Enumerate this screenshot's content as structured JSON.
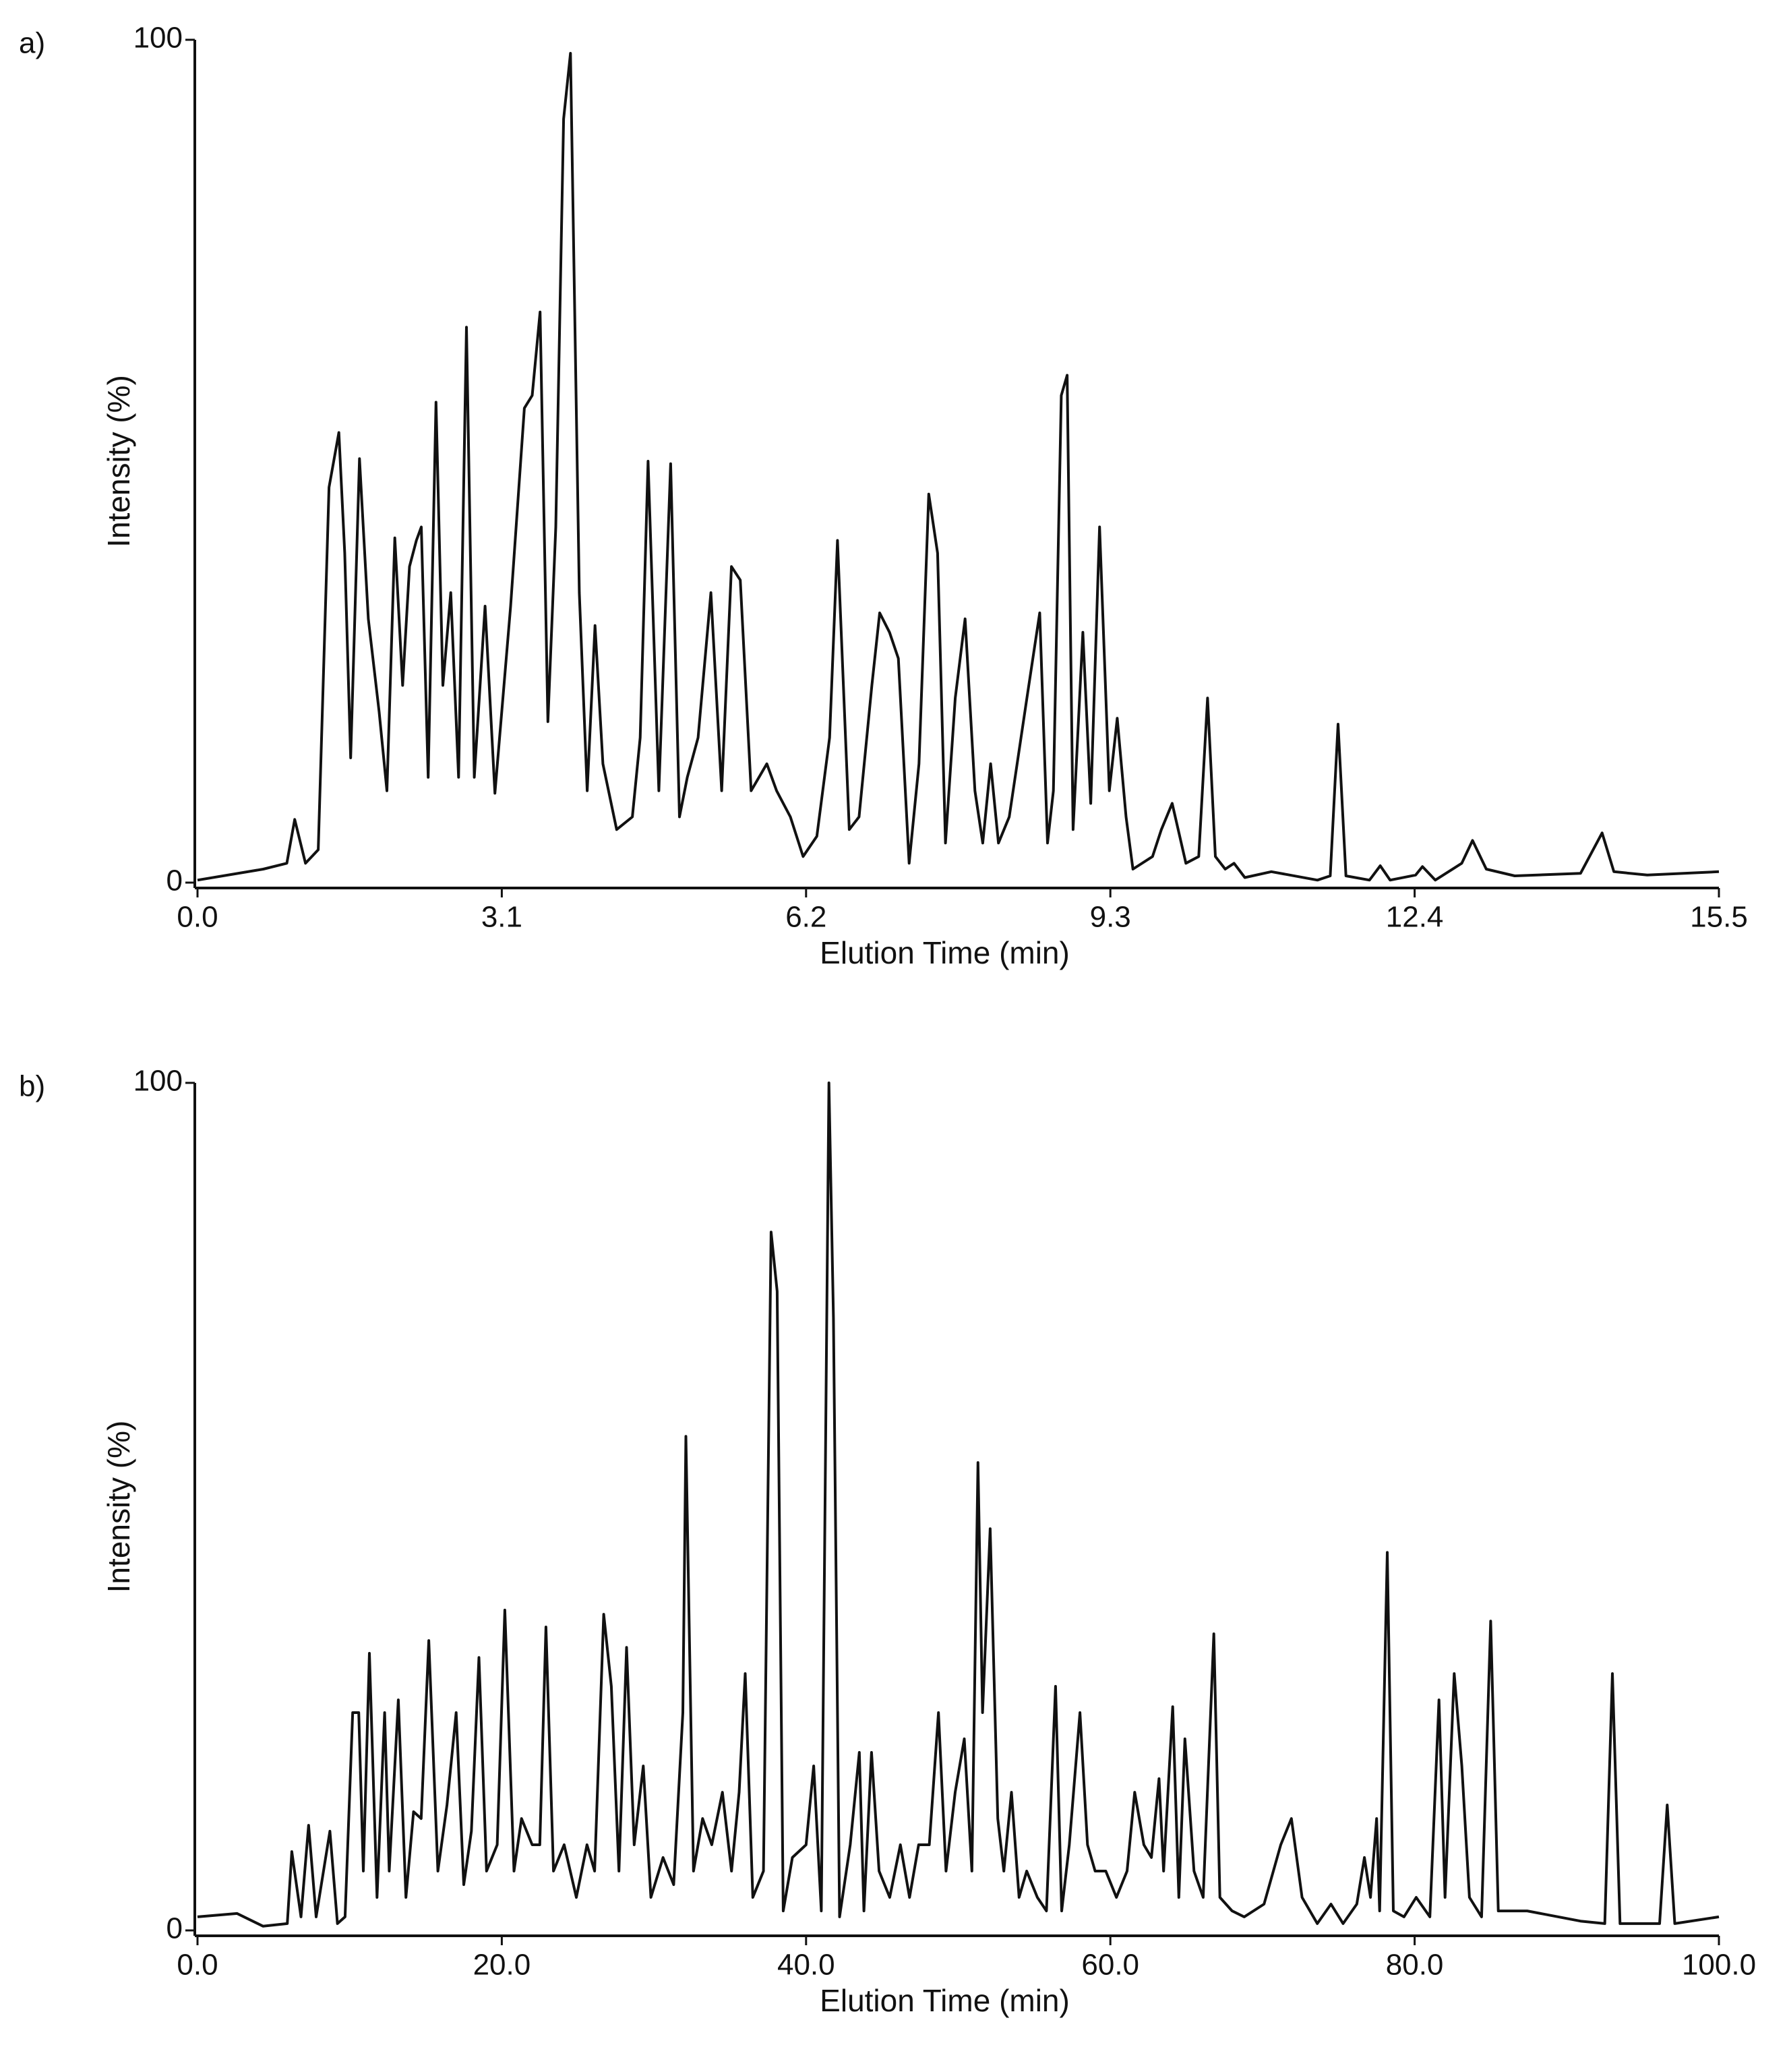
{
  "chart_data": [
    {
      "type": "line",
      "panel_label": "a)",
      "x_label": "Elution Time (min)",
      "y_label": "Intensity (%)",
      "color": "#111111",
      "grid": false,
      "xlim": [
        0,
        15.5
      ],
      "ylim": [
        0,
        100
      ],
      "xticks": [
        {
          "value": 0,
          "label": "0.0"
        },
        3.1,
        6.2,
        9.3,
        12.4,
        15.5
      ],
      "yticks": [
        0,
        100
      ],
      "x": [
        0,
        0.67,
        0.91,
        0.99,
        1.1,
        1.23,
        1.34,
        1.44,
        1.5,
        1.56,
        1.65,
        1.74,
        1.85,
        1.93,
        2.01,
        2.09,
        2.16,
        2.23,
        2.28,
        2.35,
        2.43,
        2.5,
        2.58,
        2.66,
        2.74,
        2.82,
        2.93,
        3.03,
        3.19,
        3.33,
        3.41,
        3.49,
        3.57,
        3.65,
        3.73,
        3.8,
        3.89,
        3.97,
        4.05,
        4.13,
        4.27,
        4.43,
        4.51,
        4.59,
        4.7,
        4.82,
        4.91,
        4.99,
        5.1,
        5.23,
        5.34,
        5.44,
        5.53,
        5.64,
        5.8,
        5.9,
        6.04,
        6.17,
        6.31,
        6.44,
        6.52,
        6.64,
        6.74,
        6.87,
        6.95,
        7.05,
        7.14,
        7.25,
        7.35,
        7.45,
        7.54,
        7.62,
        7.72,
        7.82,
        7.92,
        8.0,
        8.08,
        8.16,
        8.27,
        8.45,
        8.58,
        8.66,
        8.72,
        8.8,
        8.86,
        8.92,
        9.02,
        9.1,
        9.19,
        9.29,
        9.37,
        9.46,
        9.53,
        9.73,
        9.82,
        9.93,
        10.07,
        10.2,
        10.29,
        10.37,
        10.47,
        10.56,
        10.67,
        10.94,
        11.41,
        11.54,
        11.62,
        11.7,
        11.94,
        12.05,
        12.15,
        12.41,
        12.48,
        12.61,
        12.88,
        12.99,
        13.13,
        13.42,
        14.09,
        14.31,
        14.43,
        14.77,
        15.5
      ],
      "values": [
        0.3,
        1.6,
        2.3,
        7.5,
        2.3,
        3.9,
        46.9,
        53.4,
        39.1,
        14.8,
        50.3,
        31.3,
        20.3,
        10.9,
        40.9,
        23.4,
        37.5,
        40.6,
        42.2,
        12.5,
        57.0,
        23.4,
        34.4,
        12.5,
        65.9,
        12.5,
        32.8,
        10.6,
        32.8,
        56.3,
        57.8,
        67.7,
        19.1,
        42.2,
        90.6,
        98.4,
        34.4,
        10.9,
        30.5,
        14.1,
        6.3,
        7.8,
        17.2,
        50.0,
        10.9,
        49.7,
        7.8,
        12.5,
        17.2,
        34.4,
        10.9,
        37.5,
        35.9,
        10.9,
        14.1,
        10.9,
        7.8,
        3.1,
        5.5,
        17.2,
        40.6,
        6.3,
        7.8,
        23.4,
        32.0,
        29.7,
        26.6,
        2.3,
        14.1,
        46.1,
        39.1,
        4.7,
        21.9,
        31.3,
        10.9,
        4.7,
        14.1,
        4.7,
        7.8,
        21.9,
        32.0,
        4.7,
        10.9,
        57.8,
        60.2,
        6.3,
        29.7,
        9.4,
        42.2,
        10.9,
        19.5,
        7.8,
        1.6,
        3.1,
        6.3,
        9.4,
        2.3,
        3.1,
        21.9,
        3.1,
        1.6,
        2.3,
        0.6,
        1.3,
        0.3,
        0.8,
        18.8,
        0.8,
        0.3,
        2.0,
        0.3,
        0.9,
        1.9,
        0.3,
        2.3,
        5.0,
        1.6,
        0.8,
        1.1,
        5.9,
        1.3,
        0.9,
        1.3
      ]
    },
    {
      "type": "line",
      "panel_label": "b)",
      "x_label": "Elution Time (min)",
      "y_label": "Intensity (%)",
      "color": "#111111",
      "grid": false,
      "xlim": [
        0,
        100
      ],
      "ylim": [
        0,
        100
      ],
      "xticks": [
        {
          "value": 0,
          "label": "0.0"
        },
        {
          "value": 20,
          "label": "20.0"
        },
        {
          "value": 40,
          "label": "40.0"
        },
        {
          "value": 60,
          "label": "60.0"
        },
        {
          "value": 80,
          "label": "80.0"
        },
        {
          "value": 100,
          "label": "100.0"
        }
      ],
      "yticks": [
        0,
        100
      ],
      "x": [
        0,
        2.6,
        4.3,
        5.9,
        6.2,
        6.8,
        7.3,
        7.8,
        8.7,
        9.2,
        9.7,
        10.2,
        10.6,
        10.9,
        11.3,
        11.8,
        12.3,
        12.6,
        13.2,
        13.7,
        14.2,
        14.7,
        15.2,
        15.8,
        16.4,
        17.0,
        17.5,
        18.0,
        18.5,
        19.0,
        19.7,
        20.2,
        20.8,
        21.3,
        22.0,
        22.5,
        22.9,
        23.4,
        24.1,
        24.9,
        25.6,
        26.1,
        26.7,
        27.2,
        27.7,
        28.2,
        28.7,
        29.3,
        29.8,
        30.6,
        31.3,
        31.9,
        32.1,
        32.6,
        33.2,
        33.8,
        34.5,
        35.1,
        35.6,
        36.0,
        36.5,
        37.2,
        37.7,
        38.1,
        38.5,
        39.1,
        40.0,
        40.5,
        41.0,
        41.5,
        41.8,
        42.2,
        42.9,
        43.5,
        43.8,
        44.3,
        44.8,
        45.5,
        46.2,
        46.8,
        47.4,
        48.1,
        48.7,
        49.2,
        49.8,
        50.4,
        50.9,
        51.3,
        51.6,
        52.1,
        52.6,
        53.0,
        53.5,
        54.0,
        54.5,
        55.2,
        55.8,
        56.4,
        56.8,
        57.3,
        58.0,
        58.5,
        59.0,
        59.7,
        60.4,
        61.1,
        61.6,
        62.2,
        62.7,
        63.2,
        63.5,
        64.1,
        64.5,
        64.9,
        65.5,
        66.1,
        66.8,
        67.2,
        68.0,
        68.8,
        70.1,
        71.2,
        71.9,
        72.6,
        73.6,
        74.5,
        75.3,
        76.2,
        76.7,
        77.1,
        77.5,
        77.7,
        78.2,
        78.6,
        79.3,
        80.1,
        81.0,
        81.6,
        82.0,
        82.6,
        83.1,
        83.6,
        84.4,
        85.0,
        85.5,
        87.4,
        90.9,
        92.5,
        93.0,
        93.5,
        96.1,
        96.6,
        97.1,
        100
      ],
      "values": [
        1.6,
        2.0,
        0.5,
        0.8,
        9.3,
        1.6,
        12.4,
        1.6,
        11.7,
        0.8,
        1.6,
        25.7,
        25.7,
        7.0,
        32.7,
        3.9,
        25.7,
        7.0,
        27.2,
        3.9,
        14.0,
        13.2,
        34.2,
        7.0,
        14.8,
        25.7,
        5.4,
        11.7,
        32.2,
        7.0,
        10.1,
        37.8,
        7.0,
        13.2,
        10.1,
        10.1,
        35.8,
        7.0,
        10.1,
        3.9,
        10.1,
        7.0,
        37.3,
        28.8,
        7.0,
        33.4,
        10.1,
        19.4,
        3.9,
        8.6,
        5.4,
        25.7,
        58.3,
        7.0,
        13.2,
        10.1,
        16.3,
        7.0,
        16.3,
        30.3,
        3.9,
        7.0,
        82.4,
        75.4,
        2.3,
        8.6,
        10.1,
        19.4,
        2.3,
        100,
        72.3,
        1.6,
        10.1,
        21.0,
        2.3,
        21.0,
        7.0,
        3.9,
        10.1,
        3.9,
        10.1,
        10.1,
        25.7,
        7.0,
        16.3,
        22.6,
        7.0,
        55.2,
        25.7,
        47.4,
        13.2,
        7.0,
        16.3,
        3.9,
        7.0,
        3.9,
        2.3,
        28.8,
        2.3,
        10.1,
        25.7,
        10.1,
        7.0,
        7.0,
        3.9,
        7.0,
        16.3,
        10.1,
        8.6,
        17.9,
        7.0,
        26.4,
        3.9,
        22.6,
        7.0,
        3.9,
        35.0,
        3.9,
        2.3,
        1.6,
        3.1,
        10.1,
        13.2,
        3.9,
        0.8,
        3.1,
        0.8,
        3.1,
        8.6,
        3.9,
        13.2,
        2.3,
        44.6,
        2.3,
        1.6,
        3.9,
        1.6,
        27.2,
        3.9,
        30.3,
        19.4,
        3.9,
        1.6,
        36.5,
        2.3,
        2.3,
        1.1,
        0.8,
        30.3,
        0.8,
        0.8,
        14.8,
        0.8,
        1.6
      ]
    }
  ]
}
